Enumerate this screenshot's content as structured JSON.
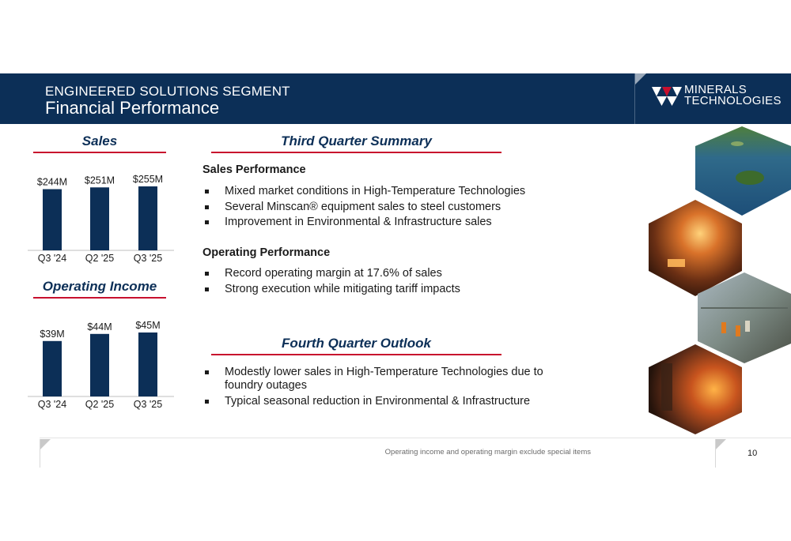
{
  "header": {
    "kicker": "ENGINEERED SOLUTIONS SEGMENT",
    "title": "Financial Performance",
    "logo": {
      "line1": "MINERALS",
      "line2": "TECHNOLOGIES"
    }
  },
  "sales_chart": {
    "heading": "Sales",
    "chart_data": {
      "type": "bar",
      "title": "Sales",
      "categories": [
        "Q3 '24",
        "Q2 '25",
        "Q3 '25"
      ],
      "values": [
        244,
        251,
        255
      ],
      "value_labels": [
        "$244M",
        "$251M",
        "$255M"
      ],
      "unit": "$M",
      "ylim": [
        0,
        255
      ],
      "grid": false,
      "color": "#0c2f57"
    }
  },
  "income_chart": {
    "heading": "Operating Income",
    "chart_data": {
      "type": "bar",
      "title": "Operating Income",
      "categories": [
        "Q3 '24",
        "Q2 '25",
        "Q3 '25"
      ],
      "values": [
        39,
        44,
        45
      ],
      "value_labels": [
        "$39M",
        "$44M",
        "$45M"
      ],
      "unit": "$M",
      "ylim": [
        0,
        45
      ],
      "grid": false,
      "color": "#0c2f57"
    }
  },
  "summary": {
    "heading": "Third Quarter Summary",
    "sales_title": "Sales Performance",
    "sales_bullets": [
      "Mixed market conditions in High-Temperature Technologies",
      "Several Minscan® equipment sales to steel customers",
      "Improvement in Environmental & Infrastructure sales"
    ],
    "ops_title": "Operating Performance",
    "ops_bullets": [
      "Record operating margin at 17.6% of sales",
      "Strong execution while mitigating tariff impacts"
    ]
  },
  "outlook": {
    "heading": "Fourth Quarter Outlook",
    "bullets": [
      "Modestly lower sales in High-Temperature Technologies due to foundry outages",
      "Typical seasonal reduction in Environmental & Infrastructure"
    ]
  },
  "images": [
    "lake-island-photo",
    "foundry-furnace-photo",
    "industrial-workers-photo",
    "molten-metal-photo"
  ],
  "colors": {
    "navy": "#0c2f57",
    "accent_red": "#c8102e"
  },
  "footer": {
    "note": "Operating income and operating margin exclude special items",
    "page": "10"
  }
}
